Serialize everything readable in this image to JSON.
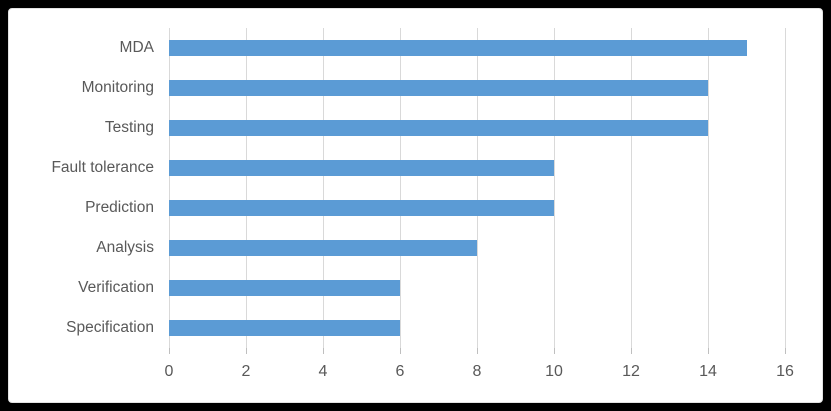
{
  "chart_data": {
    "type": "bar",
    "orientation": "horizontal",
    "title": "",
    "xlabel": "",
    "ylabel": "",
    "categories": [
      "MDA",
      "Monitoring",
      "Testing",
      "Fault tolerance",
      "Prediction",
      "Analysis",
      "Verification",
      "Specification"
    ],
    "values": [
      15,
      14,
      14,
      10,
      10,
      8,
      6,
      6
    ],
    "xlim": [
      0,
      16
    ],
    "xticks": [
      0,
      2,
      4,
      6,
      8,
      10,
      12,
      14,
      16
    ],
    "grid": "vertical-only",
    "legend": "none",
    "colors": {
      "bar": "#5B9BD5",
      "gridline": "#D9D9D9",
      "tick_mark": "#BFBFBF",
      "axis_label": "#595959",
      "category_label": "#595959",
      "plot_background": "#FFFFFF",
      "frame": "#000000"
    }
  }
}
